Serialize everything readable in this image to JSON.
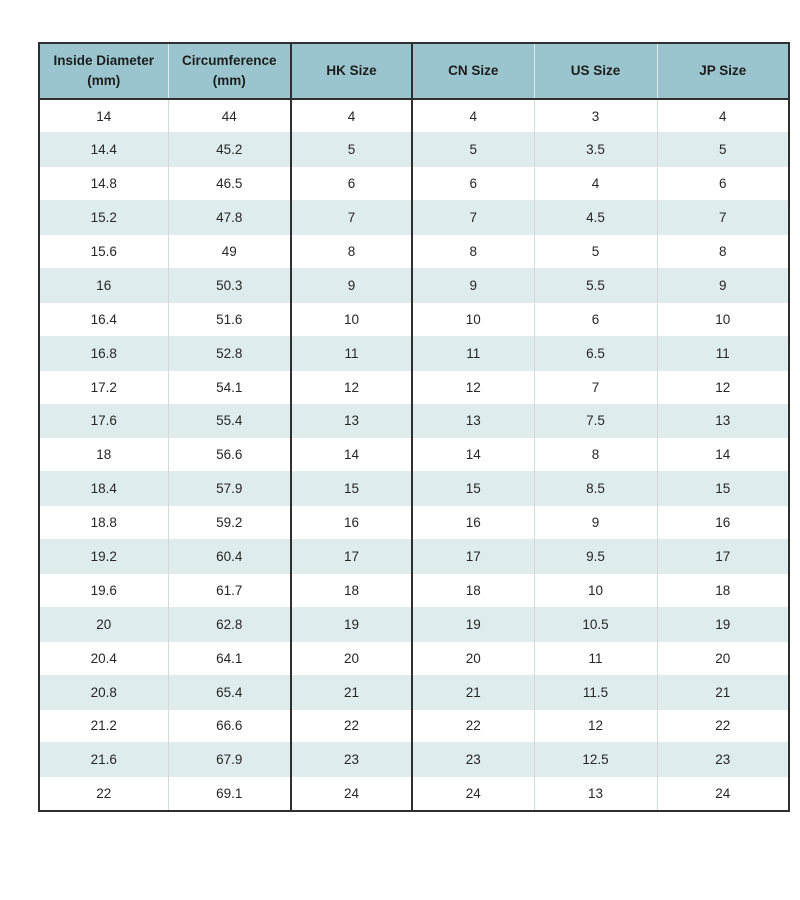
{
  "colors": {
    "header_bg": "#9bc5ce",
    "stripe_bg": "#dfecee",
    "row_bg": "#ffffff",
    "border_dark": "#2f2f2f",
    "border_light": "#d3d9da",
    "text": "#1d1d1d"
  },
  "table": {
    "columns": [
      {
        "label": "Inside Diameter (mm)"
      },
      {
        "label": "Circumference (mm)"
      },
      {
        "label": "HK Size"
      },
      {
        "label": "CN Size"
      },
      {
        "label": "US Size"
      },
      {
        "label": "JP Size"
      }
    ],
    "rows": [
      [
        "14",
        "44",
        "4",
        "4",
        "3",
        "4"
      ],
      [
        "14.4",
        "45.2",
        "5",
        "5",
        "3.5",
        "5"
      ],
      [
        "14.8",
        "46.5",
        "6",
        "6",
        "4",
        "6"
      ],
      [
        "15.2",
        "47.8",
        "7",
        "7",
        "4.5",
        "7"
      ],
      [
        "15.6",
        "49",
        "8",
        "8",
        "5",
        "8"
      ],
      [
        "16",
        "50.3",
        "9",
        "9",
        "5.5",
        "9"
      ],
      [
        "16.4",
        "51.6",
        "10",
        "10",
        "6",
        "10"
      ],
      [
        "16.8",
        "52.8",
        "11",
        "11",
        "6.5",
        "11"
      ],
      [
        "17.2",
        "54.1",
        "12",
        "12",
        "7",
        "12"
      ],
      [
        "17.6",
        "55.4",
        "13",
        "13",
        "7.5",
        "13"
      ],
      [
        "18",
        "56.6",
        "14",
        "14",
        "8",
        "14"
      ],
      [
        "18.4",
        "57.9",
        "15",
        "15",
        "8.5",
        "15"
      ],
      [
        "18.8",
        "59.2",
        "16",
        "16",
        "9",
        "16"
      ],
      [
        "19.2",
        "60.4",
        "17",
        "17",
        "9.5",
        "17"
      ],
      [
        "19.6",
        "61.7",
        "18",
        "18",
        "10",
        "18"
      ],
      [
        "20",
        "62.8",
        "19",
        "19",
        "10.5",
        "19"
      ],
      [
        "20.4",
        "64.1",
        "20",
        "20",
        "11",
        "20"
      ],
      [
        "20.8",
        "65.4",
        "21",
        "21",
        "11.5",
        "21"
      ],
      [
        "21.2",
        "66.6",
        "22",
        "22",
        "12",
        "22"
      ],
      [
        "21.6",
        "67.9",
        "23",
        "23",
        "12.5",
        "23"
      ],
      [
        "22",
        "69.1",
        "24",
        "24",
        "13",
        "24"
      ]
    ]
  }
}
